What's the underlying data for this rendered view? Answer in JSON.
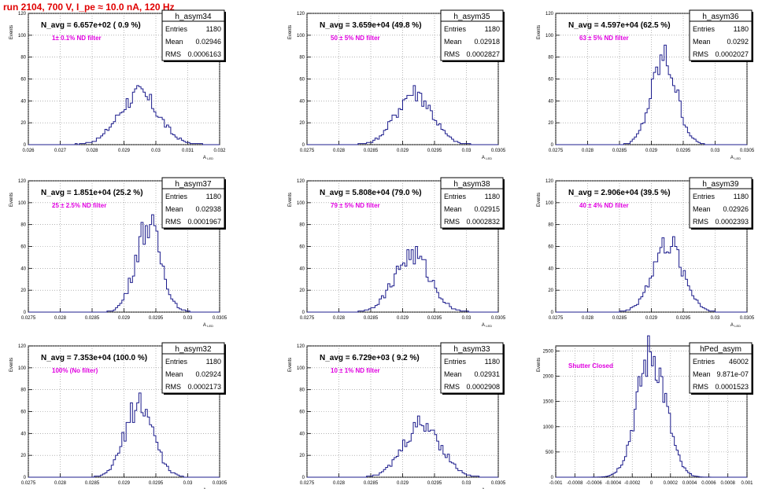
{
  "page_title": "run 2104,   700 V, I_pe ≈ 10.0 nA, 120 Hz",
  "colors": {
    "hist": "#1c1c8c",
    "title": "#e00000",
    "annotation": "#e000e0",
    "grid": "#888888"
  },
  "chart_data": [
    {
      "type": "bar",
      "name": "h_asym34",
      "navg": "N_avg = 6.657e+02 ( 0.9 %)",
      "filter": "1± 0.1% ND filter",
      "stats": [
        [
          "Entries",
          "1180"
        ],
        [
          "Mean",
          "0.02946"
        ],
        [
          "RMS",
          "0.0006163"
        ]
      ],
      "xlabel": "A_LED",
      "ylabel": "Events",
      "xlim": [
        0.026,
        0.032
      ],
      "ylim": [
        0,
        120
      ],
      "xticks": [
        "0.026",
        "0.027",
        "0.028",
        "0.029",
        "0.03",
        "0.031",
        "0.032"
      ],
      "yticks": [
        "0",
        "20",
        "40",
        "60",
        "80",
        "100",
        "120"
      ],
      "bins": 90,
      "mean": 0.02946,
      "sigma": 0.00062,
      "peak": 46
    },
    {
      "type": "bar",
      "name": "h_asym35",
      "navg": "N_avg = 3.659e+04 (49.8 %)",
      "filter": "50 ± 5% ND filter",
      "stats": [
        [
          "Entries",
          "1180"
        ],
        [
          "Mean",
          "0.02918"
        ],
        [
          "RMS",
          "0.0002827"
        ]
      ],
      "xlabel": "A_LED",
      "ylabel": "Events",
      "xlim": [
        0.0275,
        0.0305
      ],
      "ylim": [
        0,
        120
      ],
      "xticks": [
        "0.0275",
        "0.028",
        "0.0285",
        "0.029",
        "0.0295",
        "0.03",
        "0.0305"
      ],
      "yticks": [
        "0",
        "20",
        "40",
        "60",
        "80",
        "100",
        "120"
      ],
      "bins": 90,
      "mean": 0.02918,
      "sigma": 0.00028,
      "peak": 48
    },
    {
      "type": "bar",
      "name": "h_asym36",
      "navg": "N_avg = 4.597e+04 (62.5 %)",
      "filter": "63 ± 5% ND filter",
      "stats": [
        [
          "Entries",
          "1180"
        ],
        [
          "Mean",
          "0.0292"
        ],
        [
          "RMS",
          "0.0002027"
        ]
      ],
      "xlabel": "A_LED",
      "ylabel": "Events",
      "xlim": [
        0.0275,
        0.0305
      ],
      "ylim": [
        0,
        120
      ],
      "xticks": [
        "0.0275",
        "0.028",
        "0.0285",
        "0.029",
        "0.0295",
        "0.03",
        "0.0305"
      ],
      "yticks": [
        "0",
        "20",
        "40",
        "60",
        "80",
        "100",
        "120"
      ],
      "bins": 90,
      "mean": 0.0292,
      "sigma": 0.0002,
      "peak": 78
    },
    {
      "type": "bar",
      "name": "h_asym37",
      "navg": "N_avg = 1.851e+04 (25.2 %)",
      "filter": "25 ± 2.5% ND filter",
      "stats": [
        [
          "Entries",
          "1180"
        ],
        [
          "Mean",
          "0.02938"
        ],
        [
          "RMS",
          "0.0001967"
        ]
      ],
      "xlabel": "A_LED",
      "ylabel": "Events",
      "xlim": [
        0.0275,
        0.0305
      ],
      "ylim": [
        0,
        120
      ],
      "xticks": [
        "0.0275",
        "0.028",
        "0.0285",
        "0.029",
        "0.0295",
        "0.03",
        "0.0305"
      ],
      "yticks": [
        "0",
        "20",
        "40",
        "60",
        "80",
        "100",
        "120"
      ],
      "bins": 90,
      "mean": 0.02938,
      "sigma": 0.0002,
      "peak": 80
    },
    {
      "type": "bar",
      "name": "h_asym38",
      "navg": "N_avg = 5.808e+04 (79.0 %)",
      "filter": "79 ± 5% ND filter",
      "stats": [
        [
          "Entries",
          "1180"
        ],
        [
          "Mean",
          "0.02915"
        ],
        [
          "RMS",
          "0.0002832"
        ]
      ],
      "xlabel": "A_LED",
      "ylabel": "Events",
      "xlim": [
        0.0275,
        0.0305
      ],
      "ylim": [
        0,
        120
      ],
      "xticks": [
        "0.0275",
        "0.028",
        "0.0285",
        "0.029",
        "0.0295",
        "0.03",
        "0.0305"
      ],
      "yticks": [
        "0",
        "20",
        "40",
        "60",
        "80",
        "100",
        "120"
      ],
      "bins": 90,
      "mean": 0.02915,
      "sigma": 0.00028,
      "peak": 52
    },
    {
      "type": "bar",
      "name": "h_asym39",
      "navg": "N_avg = 2.906e+04 (39.5 %)",
      "filter": "40 ± 4% ND filter",
      "stats": [
        [
          "Entries",
          "1180"
        ],
        [
          "Mean",
          "0.02926"
        ],
        [
          "RMS",
          "0.0002393"
        ]
      ],
      "xlabel": "A_LED",
      "ylabel": "Events",
      "xlim": [
        0.0275,
        0.0305
      ],
      "ylim": [
        0,
        120
      ],
      "xticks": [
        "0.0275",
        "0.028",
        "0.0285",
        "0.029",
        "0.0295",
        "0.03",
        "0.0305"
      ],
      "yticks": [
        "0",
        "20",
        "40",
        "60",
        "80",
        "100",
        "120"
      ],
      "bins": 90,
      "mean": 0.02926,
      "sigma": 0.00024,
      "peak": 62
    },
    {
      "type": "bar",
      "name": "h_asym32",
      "navg": "N_avg = 7.353e+04 (100.0 %)",
      "filter": "100% (No filter)",
      "stats": [
        [
          "Entries",
          "1180"
        ],
        [
          "Mean",
          "0.02924"
        ],
        [
          "RMS",
          "0.0002173"
        ]
      ],
      "xlabel": "A_LED",
      "ylabel": "Events",
      "xlim": [
        0.0275,
        0.0305
      ],
      "ylim": [
        0,
        120
      ],
      "xticks": [
        "0.0275",
        "0.028",
        "0.0285",
        "0.029",
        "0.0295",
        "0.03",
        "0.0305"
      ],
      "yticks": [
        "0",
        "20",
        "40",
        "60",
        "80",
        "100",
        "120"
      ],
      "bins": 90,
      "mean": 0.02924,
      "sigma": 0.00022,
      "peak": 68
    },
    {
      "type": "bar",
      "name": "h_asym33",
      "navg": "N_avg = 6.729e+03 ( 9.2 %)",
      "filter": "10 ± 1% ND filter",
      "stats": [
        [
          "Entries",
          "1180"
        ],
        [
          "Mean",
          "0.02931"
        ],
        [
          "RMS",
          "0.0002908"
        ]
      ],
      "xlabel": "A_LED",
      "ylabel": "Events",
      "xlim": [
        0.0275,
        0.0305
      ],
      "ylim": [
        0,
        120
      ],
      "xticks": [
        "0.0275",
        "0.028",
        "0.0285",
        "0.029",
        "0.0295",
        "0.03",
        "0.0305"
      ],
      "yticks": [
        "0",
        "20",
        "40",
        "60",
        "80",
        "100",
        "120"
      ],
      "bins": 90,
      "mean": 0.02931,
      "sigma": 0.00029,
      "peak": 49
    },
    {
      "type": "bar",
      "name": "hPed_asym",
      "navg": "",
      "filter": "Shutter Closed",
      "stats": [
        [
          "Entries",
          "46002"
        ],
        [
          "Mean",
          "9.871e-07"
        ],
        [
          "RMS",
          "0.0001523"
        ]
      ],
      "xlabel": "",
      "ylabel": "Events",
      "xlim": [
        -0.001,
        0.001
      ],
      "ylim": [
        0,
        2600
      ],
      "xticks": [
        "-0.001",
        "-0.0008",
        "-0.0006",
        "-0.0004",
        "-0.0002",
        "0",
        "0.0002",
        "0.0004",
        "0.0006",
        "0.0008",
        "0.001"
      ],
      "yticks": [
        "0",
        "500",
        "1000",
        "1500",
        "2000",
        "2500"
      ],
      "bins": 100,
      "mean": 0.0,
      "sigma": 0.00015,
      "peak": 2440
    }
  ]
}
